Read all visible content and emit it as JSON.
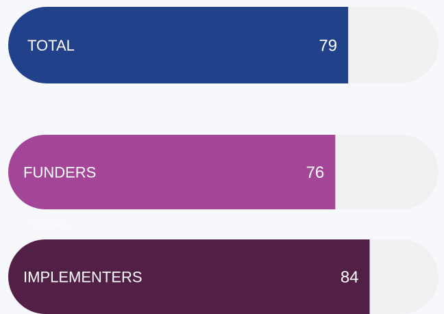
{
  "chart_data": {
    "type": "bar",
    "orientation": "horizontal",
    "categories": [
      "TOTAL",
      "FUNDERS",
      "IMPLEMENTERS"
    ],
    "values": [
      79,
      76,
      84
    ],
    "colors": [
      "#22418b",
      "#a34697",
      "#522046"
    ],
    "xlim": [
      0,
      100
    ],
    "annotation": "TOTAL"
  }
}
